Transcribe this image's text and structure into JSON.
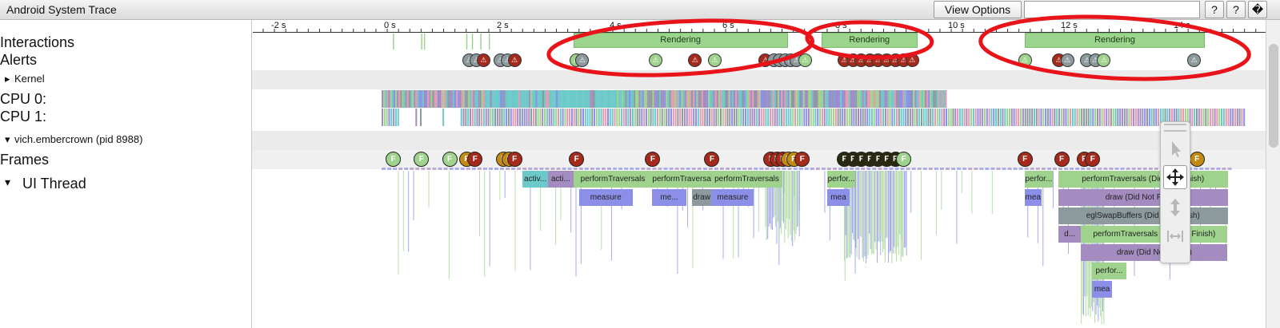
{
  "app": {
    "title": "Android System Trace",
    "view_options_label": "View Options",
    "help_label": "?",
    "keyboard_label": "?",
    "extra_label": "�"
  },
  "ruler": {
    "ticks": [
      -2,
      0,
      2,
      4,
      6,
      8,
      10,
      12,
      14
    ],
    "labels": [
      "-2 s",
      "0 s",
      "2 s",
      "4 s",
      "6 s",
      "8 s",
      "10 s",
      "12 s",
      "14 s"
    ]
  },
  "tracks": {
    "interactions": "Interactions",
    "alerts": "Alerts",
    "kernel": "Kernel",
    "cpu0": "CPU 0:",
    "cpu1": "CPU 1:",
    "process": "vich.embercrown (pid 8988)",
    "frames": "Frames",
    "ui_thread": "UI Thread",
    "expand_arrow": "▸",
    "collapse_arrow": "▾"
  },
  "interactions": [
    {
      "label": "Rendering",
      "start": 3.4,
      "end": 7.2
    },
    {
      "label": "Rendering",
      "start": 7.8,
      "end": 9.5
    },
    {
      "label": "Rendering",
      "start": 11.4,
      "end": 14.6
    }
  ],
  "alerts": {
    "symbol": "⚠",
    "items": [
      {
        "t": 1.55,
        "c": "gray"
      },
      {
        "t": 1.68,
        "c": "gray"
      },
      {
        "t": 1.8,
        "c": "red"
      },
      {
        "t": 2.1,
        "c": "gray"
      },
      {
        "t": 2.23,
        "c": "gray"
      },
      {
        "t": 2.35,
        "c": "red"
      },
      {
        "t": 3.45,
        "c": "green"
      },
      {
        "t": 3.55,
        "c": "gray"
      },
      {
        "t": 4.85,
        "c": "green"
      },
      {
        "t": 5.55,
        "c": "red"
      },
      {
        "t": 5.9,
        "c": "green"
      },
      {
        "t": 6.8,
        "c": "red"
      },
      {
        "t": 6.95,
        "c": "gray"
      },
      {
        "t": 7.05,
        "c": "gray"
      },
      {
        "t": 7.15,
        "c": "gray"
      },
      {
        "t": 7.25,
        "c": "gray"
      },
      {
        "t": 7.35,
        "c": "gray"
      },
      {
        "t": 7.5,
        "c": "green"
      },
      {
        "t": 8.2,
        "c": "red"
      },
      {
        "t": 8.35,
        "c": "red"
      },
      {
        "t": 8.5,
        "c": "red"
      },
      {
        "t": 8.65,
        "c": "red"
      },
      {
        "t": 8.8,
        "c": "red"
      },
      {
        "t": 8.95,
        "c": "red"
      },
      {
        "t": 9.1,
        "c": "red"
      },
      {
        "t": 9.25,
        "c": "red"
      },
      {
        "t": 9.4,
        "c": "red"
      },
      {
        "t": 11.4,
        "c": "green"
      },
      {
        "t": 12.0,
        "c": "red"
      },
      {
        "t": 12.15,
        "c": "gray"
      },
      {
        "t": 12.5,
        "c": "gray"
      },
      {
        "t": 12.65,
        "c": "gray"
      },
      {
        "t": 12.8,
        "c": "green"
      },
      {
        "t": 14.4,
        "c": "gray"
      }
    ]
  },
  "frames": {
    "symbol": "F",
    "items": [
      {
        "t": 0.2,
        "c": "green"
      },
      {
        "t": 0.7,
        "c": "green"
      },
      {
        "t": 1.2,
        "c": "green"
      },
      {
        "t": 1.5,
        "c": "orange"
      },
      {
        "t": 1.65,
        "c": "red"
      },
      {
        "t": 2.15,
        "c": "orange"
      },
      {
        "t": 2.25,
        "c": "orange"
      },
      {
        "t": 2.35,
        "c": "red"
      },
      {
        "t": 3.45,
        "c": "red"
      },
      {
        "t": 4.8,
        "c": "red"
      },
      {
        "t": 5.85,
        "c": "red"
      },
      {
        "t": 6.9,
        "c": "red"
      },
      {
        "t": 7.0,
        "c": "red"
      },
      {
        "t": 7.1,
        "c": "red"
      },
      {
        "t": 7.2,
        "c": "orange"
      },
      {
        "t": 7.3,
        "c": "orange"
      },
      {
        "t": 7.45,
        "c": "red"
      },
      {
        "t": 8.2,
        "c": "dark"
      },
      {
        "t": 8.35,
        "c": "dark"
      },
      {
        "t": 8.5,
        "c": "dark"
      },
      {
        "t": 8.65,
        "c": "dark"
      },
      {
        "t": 8.8,
        "c": "dark"
      },
      {
        "t": 8.95,
        "c": "dark"
      },
      {
        "t": 9.1,
        "c": "dark"
      },
      {
        "t": 9.25,
        "c": "green"
      },
      {
        "t": 11.4,
        "c": "red"
      },
      {
        "t": 12.05,
        "c": "red"
      },
      {
        "t": 12.45,
        "c": "red"
      },
      {
        "t": 12.6,
        "c": "red"
      },
      {
        "t": 14.45,
        "c": "orange"
      }
    ]
  },
  "ui_slices": [
    {
      "label": "activ...",
      "start": 2.5,
      "end": 2.95,
      "row": 0,
      "c": "teal"
    },
    {
      "label": "acti...",
      "start": 2.95,
      "end": 3.4,
      "row": 0,
      "c": "purple"
    },
    {
      "label": "performTraversals",
      "start": 3.4,
      "end": 4.8,
      "row": 0,
      "c": "green"
    },
    {
      "label": "measure",
      "start": 3.5,
      "end": 4.45,
      "row": 1,
      "c": "blue"
    },
    {
      "label": "performTraversals",
      "start": 4.8,
      "end": 5.85,
      "row": 0,
      "c": "green"
    },
    {
      "label": "me...",
      "start": 4.8,
      "end": 5.4,
      "row": 1,
      "c": "blue"
    },
    {
      "label": "draw",
      "start": 5.5,
      "end": 5.85,
      "row": 1,
      "c": "gray"
    },
    {
      "label": "performTraversals",
      "start": 5.85,
      "end": 7.1,
      "row": 0,
      "c": "green"
    },
    {
      "label": "measure",
      "start": 5.85,
      "end": 6.6,
      "row": 1,
      "c": "blue"
    },
    {
      "label": "perfor...",
      "start": 7.9,
      "end": 8.4,
      "row": 0,
      "c": "green"
    },
    {
      "label": "mea",
      "start": 7.9,
      "end": 8.3,
      "row": 1,
      "c": "blue"
    },
    {
      "label": "perfor...",
      "start": 11.4,
      "end": 11.9,
      "row": 0,
      "c": "green"
    },
    {
      "label": "mea",
      "start": 11.4,
      "end": 11.7,
      "row": 1,
      "c": "blue"
    },
    {
      "label": "performTraversals (Did Not Finish)",
      "start": 12.0,
      "end": 15.0,
      "row": 0,
      "c": "green"
    },
    {
      "label": "draw (Did Not Finish)",
      "start": 12.0,
      "end": 15.0,
      "row": 1,
      "c": "purple"
    },
    {
      "label": "eglSwapBuffers (Did Not Finish)",
      "start": 12.0,
      "end": 15.0,
      "row": 2,
      "c": "gray"
    },
    {
      "label": "d...",
      "start": 12.0,
      "end": 12.4,
      "row": 3,
      "c": "purple"
    },
    {
      "label": "performTraversals (Did Not Finish)",
      "start": 12.4,
      "end": 15.0,
      "row": 3,
      "c": "green"
    },
    {
      "label": "draw (Did Not Finish)",
      "start": 12.4,
      "end": 15.0,
      "row": 4,
      "c": "purple"
    },
    {
      "label": "perfor...",
      "start": 12.6,
      "end": 13.2,
      "row": 5,
      "c": "green"
    },
    {
      "label": "mea",
      "start": 12.6,
      "end": 12.95,
      "row": 6,
      "c": "blue"
    }
  ],
  "colors": {
    "green": "#9fd38d",
    "red": "#a52a1c",
    "gray": "#8c9a9e",
    "orange": "#c28a12",
    "dark": "#2a2a10",
    "blue": "#8b8fe8",
    "teal": "#6cc9c9",
    "purple": "#a58cc0",
    "pink": "#e29ab0",
    "annotation": "#e8141a"
  }
}
